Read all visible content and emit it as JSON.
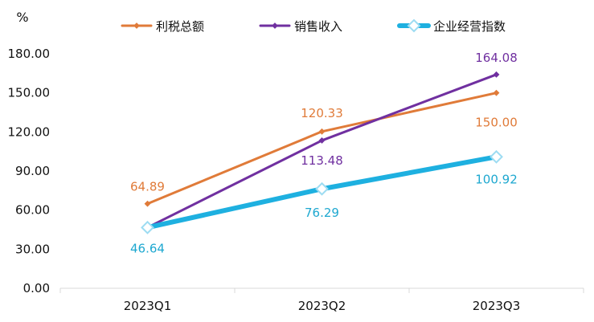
{
  "chart_data": {
    "type": "line",
    "unit_label": "%",
    "categories": [
      "2023Q1",
      "2023Q2",
      "2023Q3"
    ],
    "ylim": [
      0,
      180
    ],
    "yticks": [
      0,
      30,
      60,
      90,
      120,
      150,
      180
    ],
    "ytick_labels": [
      "0.00",
      "30.00",
      "60.00",
      "90.00",
      "120.00",
      "150.00",
      "180.00"
    ],
    "grid": false,
    "legend_position": "top",
    "series": [
      {
        "name": "利税总额",
        "values": [
          64.89,
          120.33,
          150.0
        ],
        "labels": [
          "64.89",
          "120.33",
          "150.00"
        ],
        "color": "#E07B39",
        "marker": "diamond-small"
      },
      {
        "name": "销售收入",
        "values": [
          46.64,
          113.48,
          164.08
        ],
        "labels": [
          "",
          "113.48",
          "164.08"
        ],
        "color": "#7030A0",
        "marker": "diamond-small"
      },
      {
        "name": "企业经营指数",
        "values": [
          46.64,
          76.29,
          100.92
        ],
        "labels": [
          "46.64",
          "76.29",
          "100.92"
        ],
        "color": "#1EB0E0",
        "marker": "diamond-large-hollow"
      }
    ]
  }
}
